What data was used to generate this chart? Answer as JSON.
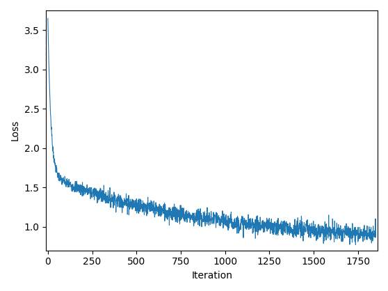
{
  "xlabel": "Iteration",
  "ylabel": "Loss",
  "line_color": "#1f77b4",
  "line_width": 0.8,
  "figsize": [
    5.58,
    4.18
  ],
  "dpi": 100,
  "xlim": [
    -10,
    1860
  ],
  "ylim": [
    0.7,
    3.75
  ],
  "xticks": [
    0,
    250,
    500,
    750,
    1000,
    1250,
    1500,
    1750
  ],
  "yticks": [
    1.0,
    1.5,
    2.0,
    2.5,
    3.0,
    3.5
  ],
  "n_points": 1850,
  "seed": 7,
  "initial_loss": 3.65,
  "final_loss": 0.82,
  "fast_component": 2.0,
  "fast_decay": 0.06,
  "slow_decay": 0.0012,
  "noise_scale": 0.055
}
